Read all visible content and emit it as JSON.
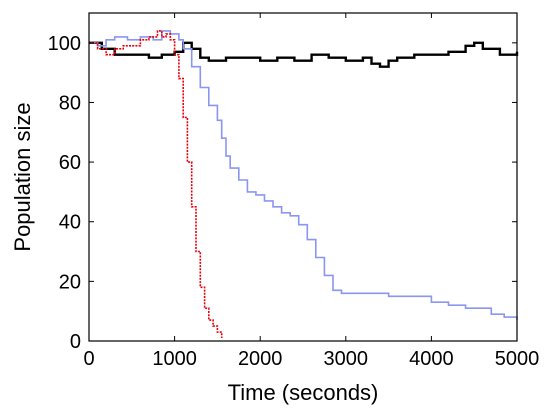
{
  "chart_data": {
    "type": "line",
    "title": "",
    "xlabel": "Time (seconds)",
    "ylabel": "Population size",
    "xlim": [
      0,
      5000
    ],
    "ylim": [
      0,
      110
    ],
    "xticks": [
      0,
      1000,
      2000,
      3000,
      4000,
      5000
    ],
    "yticks": [
      0,
      20,
      40,
      60,
      80,
      100
    ],
    "grid": false,
    "legend": "none",
    "series": [
      {
        "color": "#000000",
        "style": "solid",
        "points": [
          [
            0,
            100
          ],
          [
            150,
            98
          ],
          [
            300,
            96
          ],
          [
            500,
            96
          ],
          [
            700,
            95
          ],
          [
            850,
            96
          ],
          [
            1000,
            97
          ],
          [
            1100,
            100
          ],
          [
            1200,
            98
          ],
          [
            1300,
            95
          ],
          [
            1400,
            94
          ],
          [
            1600,
            95
          ],
          [
            1800,
            95
          ],
          [
            2000,
            94
          ],
          [
            2200,
            95
          ],
          [
            2400,
            94
          ],
          [
            2600,
            96
          ],
          [
            2800,
            95
          ],
          [
            3000,
            94
          ],
          [
            3200,
            95
          ],
          [
            3300,
            93
          ],
          [
            3400,
            92
          ],
          [
            3500,
            94
          ],
          [
            3600,
            95
          ],
          [
            3800,
            96
          ],
          [
            4000,
            96
          ],
          [
            4200,
            97
          ],
          [
            4400,
            99
          ],
          [
            4500,
            100
          ],
          [
            4600,
            98
          ],
          [
            4800,
            96
          ],
          [
            5000,
            97
          ]
        ]
      },
      {
        "color": "#8a96f0",
        "style": "solid",
        "points": [
          [
            0,
            100
          ],
          [
            100,
            99
          ],
          [
            200,
            101
          ],
          [
            300,
            102
          ],
          [
            450,
            101
          ],
          [
            600,
            102
          ],
          [
            750,
            101
          ],
          [
            850,
            104
          ],
          [
            950,
            103
          ],
          [
            1050,
            101
          ],
          [
            1100,
            98
          ],
          [
            1200,
            92
          ],
          [
            1300,
            85
          ],
          [
            1400,
            79
          ],
          [
            1500,
            74
          ],
          [
            1550,
            68
          ],
          [
            1600,
            62
          ],
          [
            1650,
            58
          ],
          [
            1750,
            54
          ],
          [
            1850,
            50
          ],
          [
            1950,
            49
          ],
          [
            2050,
            47
          ],
          [
            2150,
            45
          ],
          [
            2250,
            43
          ],
          [
            2350,
            42
          ],
          [
            2450,
            39
          ],
          [
            2550,
            34
          ],
          [
            2650,
            28
          ],
          [
            2750,
            22
          ],
          [
            2850,
            17
          ],
          [
            2950,
            16
          ],
          [
            3200,
            16
          ],
          [
            3500,
            15
          ],
          [
            3800,
            15
          ],
          [
            4000,
            13
          ],
          [
            4200,
            12
          ],
          [
            4400,
            11
          ],
          [
            4550,
            11
          ],
          [
            4700,
            9
          ],
          [
            4850,
            8
          ],
          [
            5000,
            7
          ]
        ]
      },
      {
        "color": "#e8000b",
        "style": "dotted",
        "points": [
          [
            0,
            100
          ],
          [
            100,
            98
          ],
          [
            200,
            96
          ],
          [
            300,
            98
          ],
          [
            400,
            99
          ],
          [
            500,
            99
          ],
          [
            600,
            101
          ],
          [
            700,
            102
          ],
          [
            800,
            104
          ],
          [
            850,
            102
          ],
          [
            900,
            103
          ],
          [
            950,
            101
          ],
          [
            1000,
            96
          ],
          [
            1050,
            88
          ],
          [
            1100,
            75
          ],
          [
            1150,
            60
          ],
          [
            1200,
            45
          ],
          [
            1250,
            30
          ],
          [
            1300,
            18
          ],
          [
            1350,
            11
          ],
          [
            1400,
            7
          ],
          [
            1450,
            5
          ],
          [
            1500,
            3
          ],
          [
            1550,
            1
          ]
        ]
      }
    ]
  }
}
